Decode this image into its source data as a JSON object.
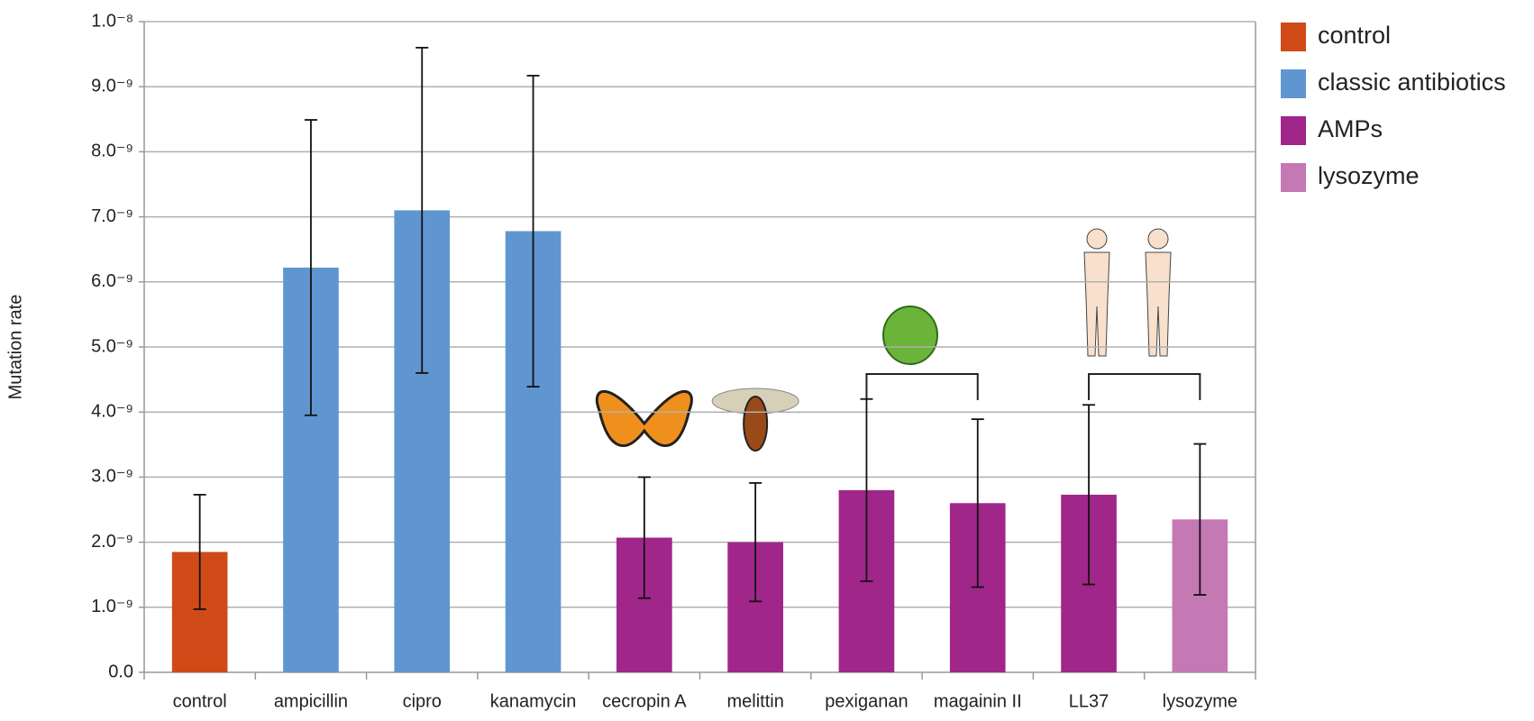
{
  "chart_data": {
    "type": "bar",
    "y_label": "Mutation rate",
    "categories": [
      "control",
      "ampicillin",
      "cipro",
      "kanamycin",
      "cecropin A",
      "melittin",
      "pexiganan",
      "magainin II",
      "LL37",
      "lysozyme"
    ],
    "values": [
      1.85,
      6.22,
      7.1,
      6.78,
      2.07,
      2.0,
      2.8,
      2.6,
      2.73,
      2.35
    ],
    "errors": [
      0.88,
      2.27,
      2.5,
      2.39,
      0.93,
      0.91,
      1.4,
      1.29,
      1.38,
      1.16
    ],
    "colors": [
      "#d04a18",
      "#6096d0",
      "#6096d0",
      "#6096d0",
      "#a0268a",
      "#a0268a",
      "#a0268a",
      "#a0268a",
      "#a0268a",
      "#c478b4"
    ],
    "legend": [
      {
        "name": "control",
        "color": "#d04a18"
      },
      {
        "name": "classic antibiotics",
        "color": "#6096d0"
      },
      {
        "name": "AMPs",
        "color": "#a0268a"
      },
      {
        "name": "lysozyme",
        "color": "#c478b4"
      }
    ],
    "ylim": [
      0,
      10
    ],
    "yticks": [
      {
        "value": 0,
        "label": "0.0"
      },
      {
        "value": 1,
        "label": "1.0⁻⁹"
      },
      {
        "value": 2,
        "label": "2.0⁻⁹"
      },
      {
        "value": 3,
        "label": "3.0⁻⁹"
      },
      {
        "value": 4,
        "label": "4.0⁻⁹"
      },
      {
        "value": 5,
        "label": "5.0⁻⁹"
      },
      {
        "value": 6,
        "label": "6.0⁻⁹"
      },
      {
        "value": 7,
        "label": "7.0⁻⁹"
      },
      {
        "value": 8,
        "label": "8.0⁻⁹"
      },
      {
        "value": 9,
        "label": "9.0⁻⁹"
      },
      {
        "value": 10,
        "label": "1.0⁻⁸"
      }
    ],
    "grid": true
  }
}
